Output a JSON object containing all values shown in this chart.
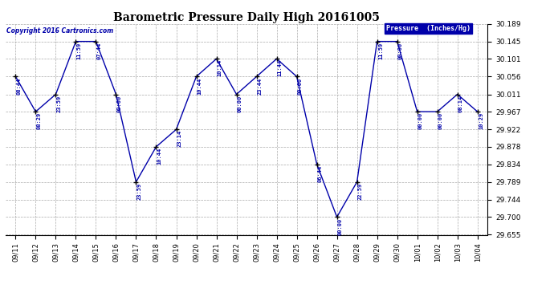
{
  "title": "Barometric Pressure Daily High 20161005",
  "ylabel": "Pressure  (Inches/Hg)",
  "copyright": "Copyright 2016 Cartronics.com",
  "line_color": "#0000AA",
  "marker_color": "#000000",
  "background_color": "#ffffff",
  "grid_color": "#aaaaaa",
  "legend_bg": "#0000AA",
  "legend_fg": "#ffffff",
  "ylim": [
    29.655,
    30.189
  ],
  "yticks": [
    29.655,
    29.7,
    29.744,
    29.789,
    29.834,
    29.878,
    29.922,
    29.967,
    30.011,
    30.056,
    30.101,
    30.145,
    30.189
  ],
  "dates": [
    "09/11",
    "09/12",
    "09/13",
    "09/14",
    "09/15",
    "09/16",
    "09/17",
    "09/18",
    "09/19",
    "09/20",
    "09/21",
    "09/22",
    "09/23",
    "09/24",
    "09/25",
    "09/26",
    "09/27",
    "09/28",
    "09/29",
    "09/30",
    "10/01",
    "10/02",
    "10/03",
    "10/04"
  ],
  "values": [
    30.056,
    29.967,
    30.011,
    30.145,
    30.145,
    30.011,
    29.789,
    29.878,
    29.922,
    30.056,
    30.101,
    30.011,
    30.056,
    30.101,
    30.056,
    29.834,
    29.7,
    29.789,
    30.145,
    30.145,
    29.967,
    29.967,
    30.011,
    29.967
  ],
  "annotations": [
    "08:44",
    "08:29",
    "23:59",
    "11:59",
    "07:44",
    "00:00",
    "23:59",
    "10:44",
    "23:14",
    "10:44",
    "10:14",
    "00:00",
    "23:44",
    "11:44",
    "00:00",
    "06:44",
    "00:00",
    "22:59",
    "11:59",
    "00:00",
    "00:00",
    "00:00",
    "08:14",
    "10:29"
  ]
}
